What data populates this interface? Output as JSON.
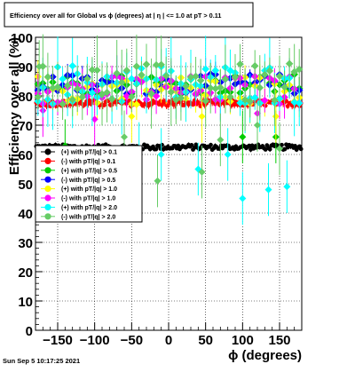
{
  "window": {
    "title": "Efficiency over all for Global vs ϕ (degrees) at |  η | <= 1.0 at pT > 0.11"
  },
  "footer": {
    "timestamp": "Sun Sep  5 10:17:25 2021"
  },
  "chart_data": {
    "type": "scatter",
    "title": "Efficiency over all for Global vs ϕ (degrees) at |  η | <= 1.0 at pT > 0.11",
    "xlabel": "ϕ (degrees)",
    "ylabel": "Efficiency over all (%)",
    "xlim": [
      -180,
      180
    ],
    "ylim": [
      0,
      100
    ],
    "xticks": [
      -150,
      -100,
      -50,
      0,
      50,
      100,
      150
    ],
    "xtick_labels": [
      "−150",
      "−100",
      "−50",
      "0",
      "50",
      "100",
      "150"
    ],
    "yticks": [
      0,
      10,
      20,
      30,
      40,
      50,
      60,
      70,
      80,
      90,
      100
    ],
    "grid": true,
    "legend_position": "middle-left",
    "series": [
      {
        "name": "(+) with pT/|q| > 0.1",
        "color": "#000000",
        "center": 62.5,
        "spread": 0.9,
        "err": 0.6,
        "outliers": []
      },
      {
        "name": "(-) with pT/|q| > 0.1",
        "color": "#ff0000",
        "center": 77.5,
        "spread": 1.0,
        "err": 1.0,
        "outliers": []
      },
      {
        "name": "(+) with pT/|q| > 0.5",
        "color": "#00cc00",
        "center": 84,
        "spread": 3.5,
        "err": 3.0,
        "outliers": [
          [
            -140,
            63
          ],
          [
            100,
            66
          ],
          [
            145,
            66
          ]
        ]
      },
      {
        "name": "(-) with pT/|q| > 0.5",
        "color": "#0000ff",
        "center": 84,
        "spread": 3.5,
        "err": 3.0,
        "outliers": []
      },
      {
        "name": "(+) with pT/|q| > 1.0",
        "color": "#ffff00",
        "center": 82,
        "spread": 5.0,
        "err": 5.0,
        "outliers": [
          [
            -50,
            73
          ],
          [
            45,
            73
          ],
          [
            145,
            73
          ]
        ]
      },
      {
        "name": "(-) with pT/|q| > 1.0",
        "color": "#ff00ff",
        "center": 82,
        "spread": 5.0,
        "err": 5.0,
        "outliers": [
          [
            -100,
            72
          ],
          [
            -170,
            75
          ],
          [
            120,
            74
          ]
        ]
      },
      {
        "name": "(+) with pT/|q| > 2.0",
        "color": "#00ffff",
        "center": 84,
        "spread": 7.0,
        "err": 8.0,
        "outliers": [
          [
            -10,
            60
          ],
          [
            40,
            55
          ],
          [
            80,
            60
          ],
          [
            100,
            45
          ],
          [
            135,
            48
          ],
          [
            160,
            49
          ],
          [
            -40,
            62
          ],
          [
            -130,
            78
          ]
        ]
      },
      {
        "name": "(-) with pT/|q| > 2.0",
        "color": "#66cc66",
        "center": 84,
        "spread": 7.0,
        "err": 8.0,
        "outliers": [
          [
            -15,
            51
          ],
          [
            45,
            54
          ],
          [
            150,
            62
          ],
          [
            -175,
            90
          ],
          [
            120,
            70
          ],
          [
            70,
            65
          ],
          [
            -60,
            66
          ]
        ]
      }
    ]
  }
}
